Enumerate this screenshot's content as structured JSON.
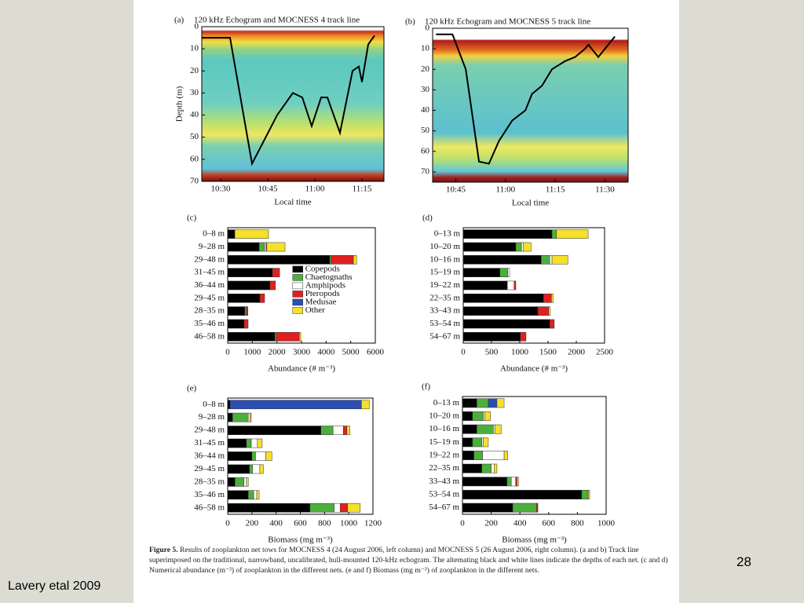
{
  "slide": {
    "page_number": "28",
    "credit": "Lavery etal 2009"
  },
  "figure_caption": {
    "label": "Figure 5.",
    "text": "Results of zooplankton net tows for MOCNESS 4 (24 August 2006, left column) and MOCNESS 5 (26 August 2006, right column). (a and b) Track line superimposed on the traditional, narrowband, uncalibrated, hull-mounted 120-kHz echogram. The altemating black and white lines indicate the depths of each net. (c and d) Numerical abundance (m⁻³) of zooplankton in the different nets. (e and f) Biomass (mg m⁻³) of zooplankton in the different nets."
  },
  "chart_data": [
    {
      "type": "line",
      "panel": "(a)",
      "title": "120 kHz Echogram and MOCNESS 4 track line",
      "xlabel": "Local time",
      "ylabel": "Depth (m)",
      "x": [
        "10:24",
        "10:33",
        "10:40",
        "10:48",
        "10:53",
        "10:56",
        "10:59",
        "11:02",
        "11:04",
        "11:08",
        "11:12",
        "11:14",
        "11:15",
        "11:17",
        "11:19"
      ],
      "values": [
        5,
        5,
        62,
        40,
        30,
        32,
        45,
        32,
        32,
        48,
        20,
        18,
        25,
        8,
        4
      ],
      "color": "#000000",
      "xlim": [
        "10:24",
        "11:22"
      ],
      "xticks": [
        "10:30",
        "10:45",
        "11:00",
        "11:15"
      ],
      "ylim": [
        0,
        70
      ],
      "y_inverted": true,
      "yticks": [
        0,
        10,
        20,
        30,
        40,
        50,
        60,
        70
      ]
    },
    {
      "type": "line",
      "panel": "(b)",
      "title": "120 kHz Echogram and MOCNESS 5 track line",
      "xlabel": "Local time",
      "x": [
        "10:39",
        "10:44",
        "10:48",
        "10:52",
        "10:55",
        "10:58",
        "11:02",
        "11:06",
        "11:08",
        "11:11",
        "11:14",
        "11:18",
        "11:21",
        "11:24",
        "11:25",
        "11:28",
        "11:33"
      ],
      "values": [
        3,
        3,
        20,
        65,
        66,
        55,
        45,
        40,
        32,
        28,
        20,
        16,
        14,
        10,
        8,
        14,
        4
      ],
      "color": "#000000",
      "xlim": [
        "10:38",
        "11:37"
      ],
      "xticks": [
        "10:45",
        "11:00",
        "11:15",
        "11:30"
      ],
      "ylim": [
        0,
        75
      ],
      "y_inverted": true,
      "yticks": [
        0,
        10,
        20,
        30,
        40,
        50,
        60,
        70
      ]
    },
    {
      "type": "bar",
      "panel": "(c)",
      "orientation": "horizontal",
      "stacked": true,
      "xlabel": "Abundance (# m⁻³)",
      "legend": "center right",
      "categories": [
        "0–8 m",
        "9–28 m",
        "29–48 m",
        "31–45 m",
        "36–44 m",
        "29–45 m",
        "28–35 m",
        "35–46 m",
        "46–58 m"
      ],
      "xlim": [
        0,
        6000
      ],
      "xticks": [
        0,
        1000,
        2000,
        3000,
        4000,
        5000,
        6000
      ],
      "series": [
        {
          "name": "Copepods",
          "color": "#000000",
          "values": [
            290,
            1280,
            4150,
            1820,
            1720,
            1310,
            700,
            670,
            1920
          ]
        },
        {
          "name": "Chaetognaths",
          "color": "#4caf3c",
          "values": [
            0,
            220,
            60,
            0,
            0,
            0,
            60,
            0,
            60
          ]
        },
        {
          "name": "Amphipods",
          "color": "#ffffff",
          "values": [
            0,
            60,
            0,
            0,
            0,
            0,
            0,
            0,
            0
          ]
        },
        {
          "name": "Pteropods",
          "color": "#e02020",
          "values": [
            0,
            30,
            900,
            290,
            220,
            190,
            60,
            160,
            930
          ]
        },
        {
          "name": "Medusae",
          "color": "#2a4fb0",
          "values": [
            0,
            0,
            0,
            0,
            0,
            0,
            0,
            0,
            0
          ]
        },
        {
          "name": "Other",
          "color": "#f5e02a",
          "values": [
            1370,
            740,
            130,
            0,
            0,
            0,
            0,
            0,
            60
          ]
        }
      ]
    },
    {
      "type": "bar",
      "panel": "(d)",
      "orientation": "horizontal",
      "stacked": true,
      "xlabel": "Abundance (# m⁻³)",
      "categories": [
        "0–13 m",
        "10–20 m",
        "10–16 m",
        "15–19 m",
        "19–22 m",
        "22–35 m",
        "33–43 m",
        "53–54 m",
        "54–67 m"
      ],
      "xlim": [
        0,
        2500
      ],
      "xticks": [
        0,
        500,
        1000,
        1500,
        2000,
        2500
      ],
      "series": [
        {
          "name": "Copepods",
          "color": "#000000",
          "values": [
            1570,
            930,
            1380,
            650,
            780,
            1420,
            1320,
            1530,
            1010
          ]
        },
        {
          "name": "Chaetognaths",
          "color": "#4caf3c",
          "values": [
            80,
            100,
            150,
            140,
            0,
            0,
            0,
            0,
            0
          ]
        },
        {
          "name": "Amphipods",
          "color": "#ffffff",
          "values": [
            0,
            30,
            40,
            30,
            120,
            0,
            0,
            0,
            0
          ]
        },
        {
          "name": "Pteropods",
          "color": "#e02020",
          "values": [
            0,
            0,
            0,
            0,
            30,
            140,
            190,
            80,
            100
          ]
        },
        {
          "name": "Medusae",
          "color": "#2a4fb0",
          "values": [
            0,
            0,
            0,
            0,
            0,
            0,
            0,
            0,
            0
          ]
        },
        {
          "name": "Other",
          "color": "#f5e02a",
          "values": [
            560,
            140,
            280,
            0,
            0,
            30,
            30,
            0,
            0
          ]
        }
      ]
    },
    {
      "type": "bar",
      "panel": "(e)",
      "orientation": "horizontal",
      "stacked": true,
      "xlabel": "Biomass (mg m⁻³)",
      "categories": [
        "0–8 m",
        "9–28 m",
        "29–48 m",
        "31–45 m",
        "36–44 m",
        "29–45 m",
        "28–35 m",
        "35–46 m",
        "46–58 m"
      ],
      "xlim": [
        0,
        1200
      ],
      "xticks": [
        0,
        200,
        400,
        600,
        800,
        1000,
        1200
      ],
      "series": [
        {
          "name": "Copepods",
          "color": "#000000",
          "values": [
            20,
            40,
            770,
            155,
            200,
            180,
            60,
            170,
            680
          ]
        },
        {
          "name": "Chaetognaths",
          "color": "#4caf3c",
          "values": [
            0,
            130,
            100,
            40,
            30,
            25,
            75,
            45,
            200
          ]
        },
        {
          "name": "Amphipods",
          "color": "#ffffff",
          "values": [
            0,
            15,
            85,
            50,
            85,
            60,
            20,
            25,
            50
          ]
        },
        {
          "name": "Pteropods",
          "color": "#e02020",
          "values": [
            0,
            0,
            30,
            0,
            0,
            0,
            0,
            0,
            60
          ]
        },
        {
          "name": "Medusae",
          "color": "#2a4fb0",
          "values": [
            1085,
            0,
            0,
            0,
            0,
            0,
            0,
            0,
            0
          ]
        },
        {
          "name": "Other",
          "color": "#f5e02a",
          "values": [
            65,
            10,
            25,
            40,
            50,
            30,
            15,
            20,
            105
          ]
        }
      ]
    },
    {
      "type": "bar",
      "panel": "(f)",
      "orientation": "horizontal",
      "stacked": true,
      "xlabel": "Biomass (mg m⁻³)",
      "categories": [
        "0–13 m",
        "10–20 m",
        "10–16 m",
        "15–19 m",
        "19–22 m",
        "22–35 m",
        "33–43 m",
        "53–54 m",
        "54–67 m"
      ],
      "xlim": [
        0,
        1000
      ],
      "xticks": [
        0,
        200,
        400,
        600,
        800,
        1000
      ],
      "series": [
        {
          "name": "Copepods",
          "color": "#000000",
          "values": [
            100,
            70,
            100,
            70,
            80,
            135,
            310,
            830,
            350
          ]
        },
        {
          "name": "Chaetognaths",
          "color": "#4caf3c",
          "values": [
            80,
            75,
            115,
            65,
            60,
            65,
            30,
            45,
            165
          ]
        },
        {
          "name": "Amphipods",
          "color": "#ffffff",
          "values": [
            0,
            10,
            10,
            10,
            150,
            20,
            30,
            0,
            0
          ]
        },
        {
          "name": "Pteropods",
          "color": "#e02020",
          "values": [
            0,
            0,
            0,
            0,
            0,
            0,
            10,
            0,
            10
          ]
        },
        {
          "name": "Medusae",
          "color": "#2a4fb0",
          "values": [
            60,
            0,
            0,
            0,
            0,
            0,
            0,
            0,
            0
          ]
        },
        {
          "name": "Other",
          "color": "#f5e02a",
          "values": [
            50,
            40,
            45,
            35,
            25,
            20,
            10,
            10,
            0
          ]
        }
      ]
    }
  ]
}
